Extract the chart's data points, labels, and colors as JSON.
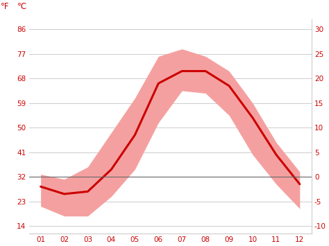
{
  "months": [
    1,
    2,
    3,
    4,
    5,
    6,
    7,
    8,
    9,
    10,
    11,
    12
  ],
  "month_labels": [
    "01",
    "02",
    "03",
    "04",
    "05",
    "06",
    "07",
    "08",
    "09",
    "10",
    "11",
    "12"
  ],
  "mean_temp_c": [
    -2.0,
    -3.5,
    -3.0,
    1.5,
    8.5,
    19.0,
    21.5,
    21.5,
    18.5,
    12.0,
    4.5,
    -1.5
  ],
  "max_temp_c": [
    0.5,
    -0.5,
    2.0,
    9.0,
    16.0,
    24.5,
    26.0,
    24.5,
    21.5,
    15.0,
    7.0,
    1.0
  ],
  "min_temp_c": [
    -6.0,
    -8.0,
    -8.0,
    -4.0,
    1.5,
    11.0,
    17.5,
    17.0,
    12.5,
    4.5,
    -1.5,
    -6.5
  ],
  "line_color": "#cc0000",
  "band_color": "#f5a0a0",
  "zero_line_color": "#666666",
  "grid_color": "#cccccc",
  "tick_color": "#cc0000",
  "background_color": "#ffffff",
  "ylabel_f": "°F",
  "ylabel_c": "°C",
  "yticks_c": [
    -10,
    -5,
    0,
    5,
    10,
    15,
    20,
    25,
    30
  ],
  "yticks_f": [
    14,
    23,
    32,
    41,
    50,
    59,
    68,
    77,
    86
  ],
  "ylim_c": [
    -11.5,
    32.0
  ],
  "figsize": [
    4.74,
    3.55
  ],
  "dpi": 100
}
